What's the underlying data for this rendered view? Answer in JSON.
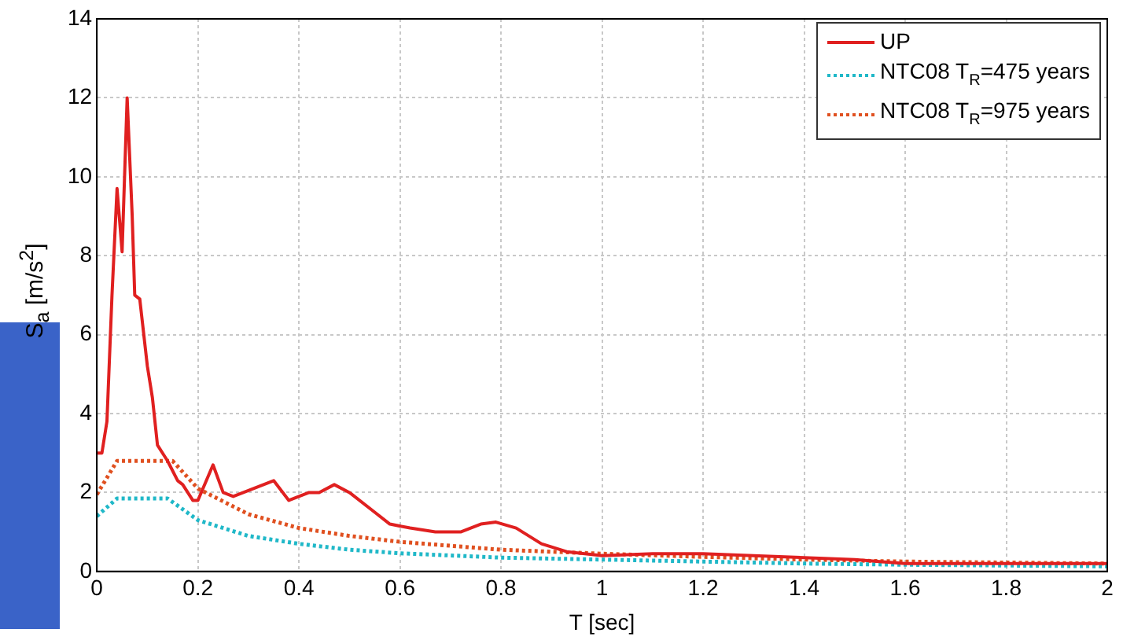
{
  "chart_data": {
    "type": "line",
    "xlabel": "T [sec]",
    "ylabel": "S$_{a}$ [m/s$^{2}$]",
    "xlim": [
      0,
      2
    ],
    "xticks": [
      0,
      0.2,
      0.4,
      0.6,
      0.8,
      1,
      1.2,
      1.4,
      1.6,
      1.8,
      2
    ],
    "ylim": [
      0,
      14
    ],
    "yticks": [
      0,
      2,
      4,
      6,
      8,
      10,
      12,
      14
    ],
    "grid": true,
    "legend": "top right",
    "marker": "none",
    "series": [
      {
        "name": "UP",
        "color": "#e02020",
        "line_style": "solid",
        "x": [
          0,
          0.01,
          0.02,
          0.03,
          0.04,
          0.05,
          0.06,
          0.07,
          0.075,
          0.085,
          0.1,
          0.11,
          0.12,
          0.14,
          0.16,
          0.17,
          0.19,
          0.2,
          0.23,
          0.25,
          0.27,
          0.29,
          0.33,
          0.35,
          0.38,
          0.4,
          0.42,
          0.44,
          0.47,
          0.5,
          0.55,
          0.58,
          0.62,
          0.67,
          0.72,
          0.76,
          0.79,
          0.83,
          0.88,
          0.93,
          1,
          1.1,
          1.2,
          1.3,
          1.4,
          1.5,
          1.6,
          1.8,
          2
        ],
        "values": [
          3,
          3,
          3.8,
          7,
          9.7,
          8.1,
          12,
          9,
          7,
          6.9,
          5.2,
          4.4,
          3.2,
          2.8,
          2.3,
          2.2,
          1.8,
          1.8,
          2.7,
          2,
          1.9,
          2,
          2.2,
          2.3,
          1.8,
          1.9,
          2,
          2,
          2.2,
          2,
          1.5,
          1.2,
          1.1,
          1,
          1,
          1.2,
          1.25,
          1.1,
          0.7,
          0.5,
          0.4,
          0.45,
          0.45,
          0.4,
          0.35,
          0.3,
          0.2,
          0.2,
          0.2
        ]
      },
      {
        "name": "NTC08 T$_{R}$=475 years",
        "color": "#20b8c8",
        "line_style": "dotted",
        "x": [
          0,
          0.04,
          0.14,
          0.2,
          0.3,
          0.4,
          0.5,
          0.6,
          0.8,
          1,
          1.2,
          1.4,
          1.6,
          2
        ],
        "values": [
          1.4,
          1.85,
          1.85,
          1.3,
          0.9,
          0.7,
          0.55,
          0.46,
          0.35,
          0.3,
          0.25,
          0.2,
          0.17,
          0.13
        ]
      },
      {
        "name": "NTC08 T$_{R}$=975 years",
        "color": "#e05020",
        "line_style": "dotted",
        "x": [
          0,
          0.04,
          0.15,
          0.2,
          0.3,
          0.4,
          0.5,
          0.6,
          0.8,
          1,
          1.2,
          1.4,
          1.6,
          2
        ],
        "values": [
          1.95,
          2.8,
          2.8,
          2.1,
          1.45,
          1.1,
          0.9,
          0.75,
          0.55,
          0.45,
          0.37,
          0.3,
          0.25,
          0.2
        ]
      }
    ]
  }
}
